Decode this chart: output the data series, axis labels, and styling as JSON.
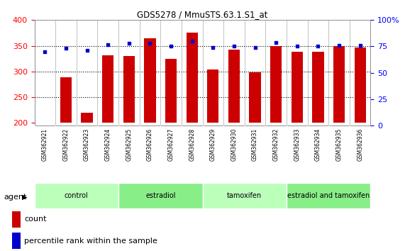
{
  "title": "GDS5278 / MmuSTS.63.1.S1_at",
  "samples": [
    "GSM362921",
    "GSM362922",
    "GSM362923",
    "GSM362924",
    "GSM362925",
    "GSM362926",
    "GSM362927",
    "GSM362928",
    "GSM362929",
    "GSM362930",
    "GSM362931",
    "GSM362932",
    "GSM362933",
    "GSM362934",
    "GSM362935",
    "GSM362936"
  ],
  "counts": [
    201,
    289,
    220,
    332,
    330,
    365,
    325,
    376,
    304,
    342,
    299,
    350,
    339,
    339,
    350,
    347
  ],
  "percentiles": [
    70,
    73,
    71,
    77,
    78,
    78,
    75,
    80,
    74,
    75,
    74,
    79,
    75,
    75,
    76,
    76
  ],
  "bar_color": "#cc0000",
  "dot_color": "#0000cc",
  "ylim_left": [
    195,
    400
  ],
  "ylim_right": [
    0,
    100
  ],
  "yticks_left": [
    200,
    250,
    300,
    350,
    400
  ],
  "yticks_right": [
    0,
    25,
    50,
    75,
    100
  ],
  "grid_lines": [
    250,
    300,
    350
  ],
  "groups": [
    {
      "label": "control",
      "start": 0,
      "end": 4,
      "color": "#bbffbb"
    },
    {
      "label": "estradiol",
      "start": 4,
      "end": 8,
      "color": "#88ee88"
    },
    {
      "label": "tamoxifen",
      "start": 8,
      "end": 12,
      "color": "#bbffbb"
    },
    {
      "label": "estradiol and tamoxifen",
      "start": 12,
      "end": 16,
      "color": "#88ee88"
    }
  ],
  "agent_label": "agent",
  "legend_count_label": "count",
  "legend_pct_label": "percentile rank within the sample",
  "xtick_bg_color": "#cccccc",
  "group_border_color": "#ffffff",
  "bar_bottom": 200
}
